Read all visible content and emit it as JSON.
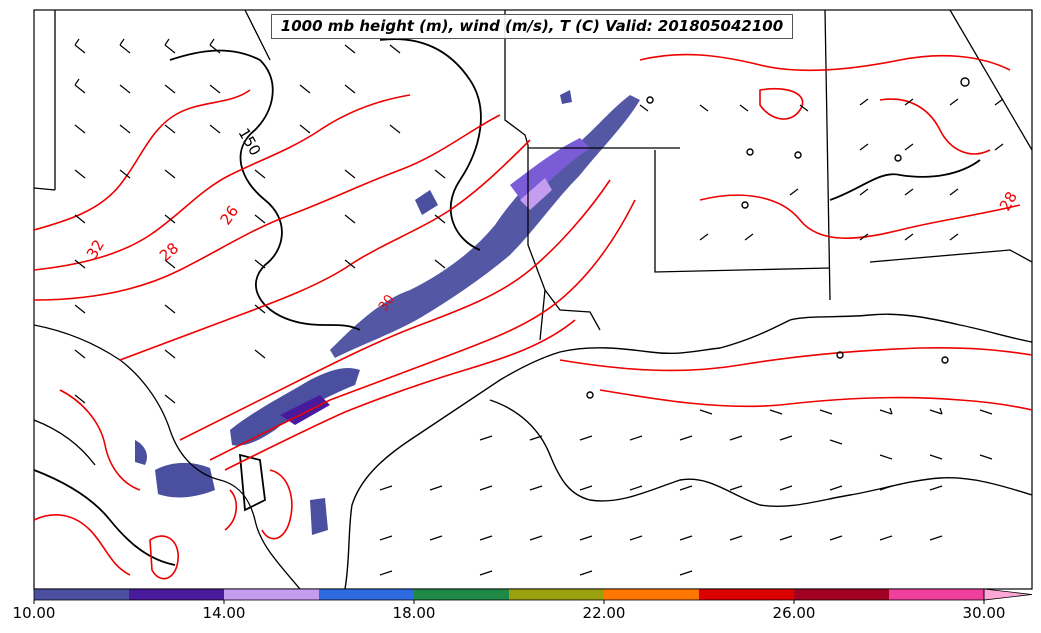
{
  "title": "1000 mb height (m), wind (m/s), T (C) Valid: 201805042100",
  "colorbar": {
    "tick_labels": [
      "10.00",
      "14.00",
      "18.00",
      "22.00",
      "26.00",
      "30.00"
    ],
    "colors": [
      "#4b4f9f",
      "#4a1a9c",
      "#c49cf0",
      "#2e6be0",
      "#1e8a45",
      "#9aa00e",
      "#ff7700",
      "#dd0000",
      "#a10020",
      "#f03f9c",
      "#ffa8d8"
    ]
  },
  "contour_labels": {
    "height": [
      "150"
    ],
    "temperature": [
      "26",
      "28",
      "32",
      "30",
      "28"
    ]
  },
  "colors": {
    "coast": "#000000",
    "temperature_contour": "#ee0000",
    "height_contour": "#000000"
  }
}
